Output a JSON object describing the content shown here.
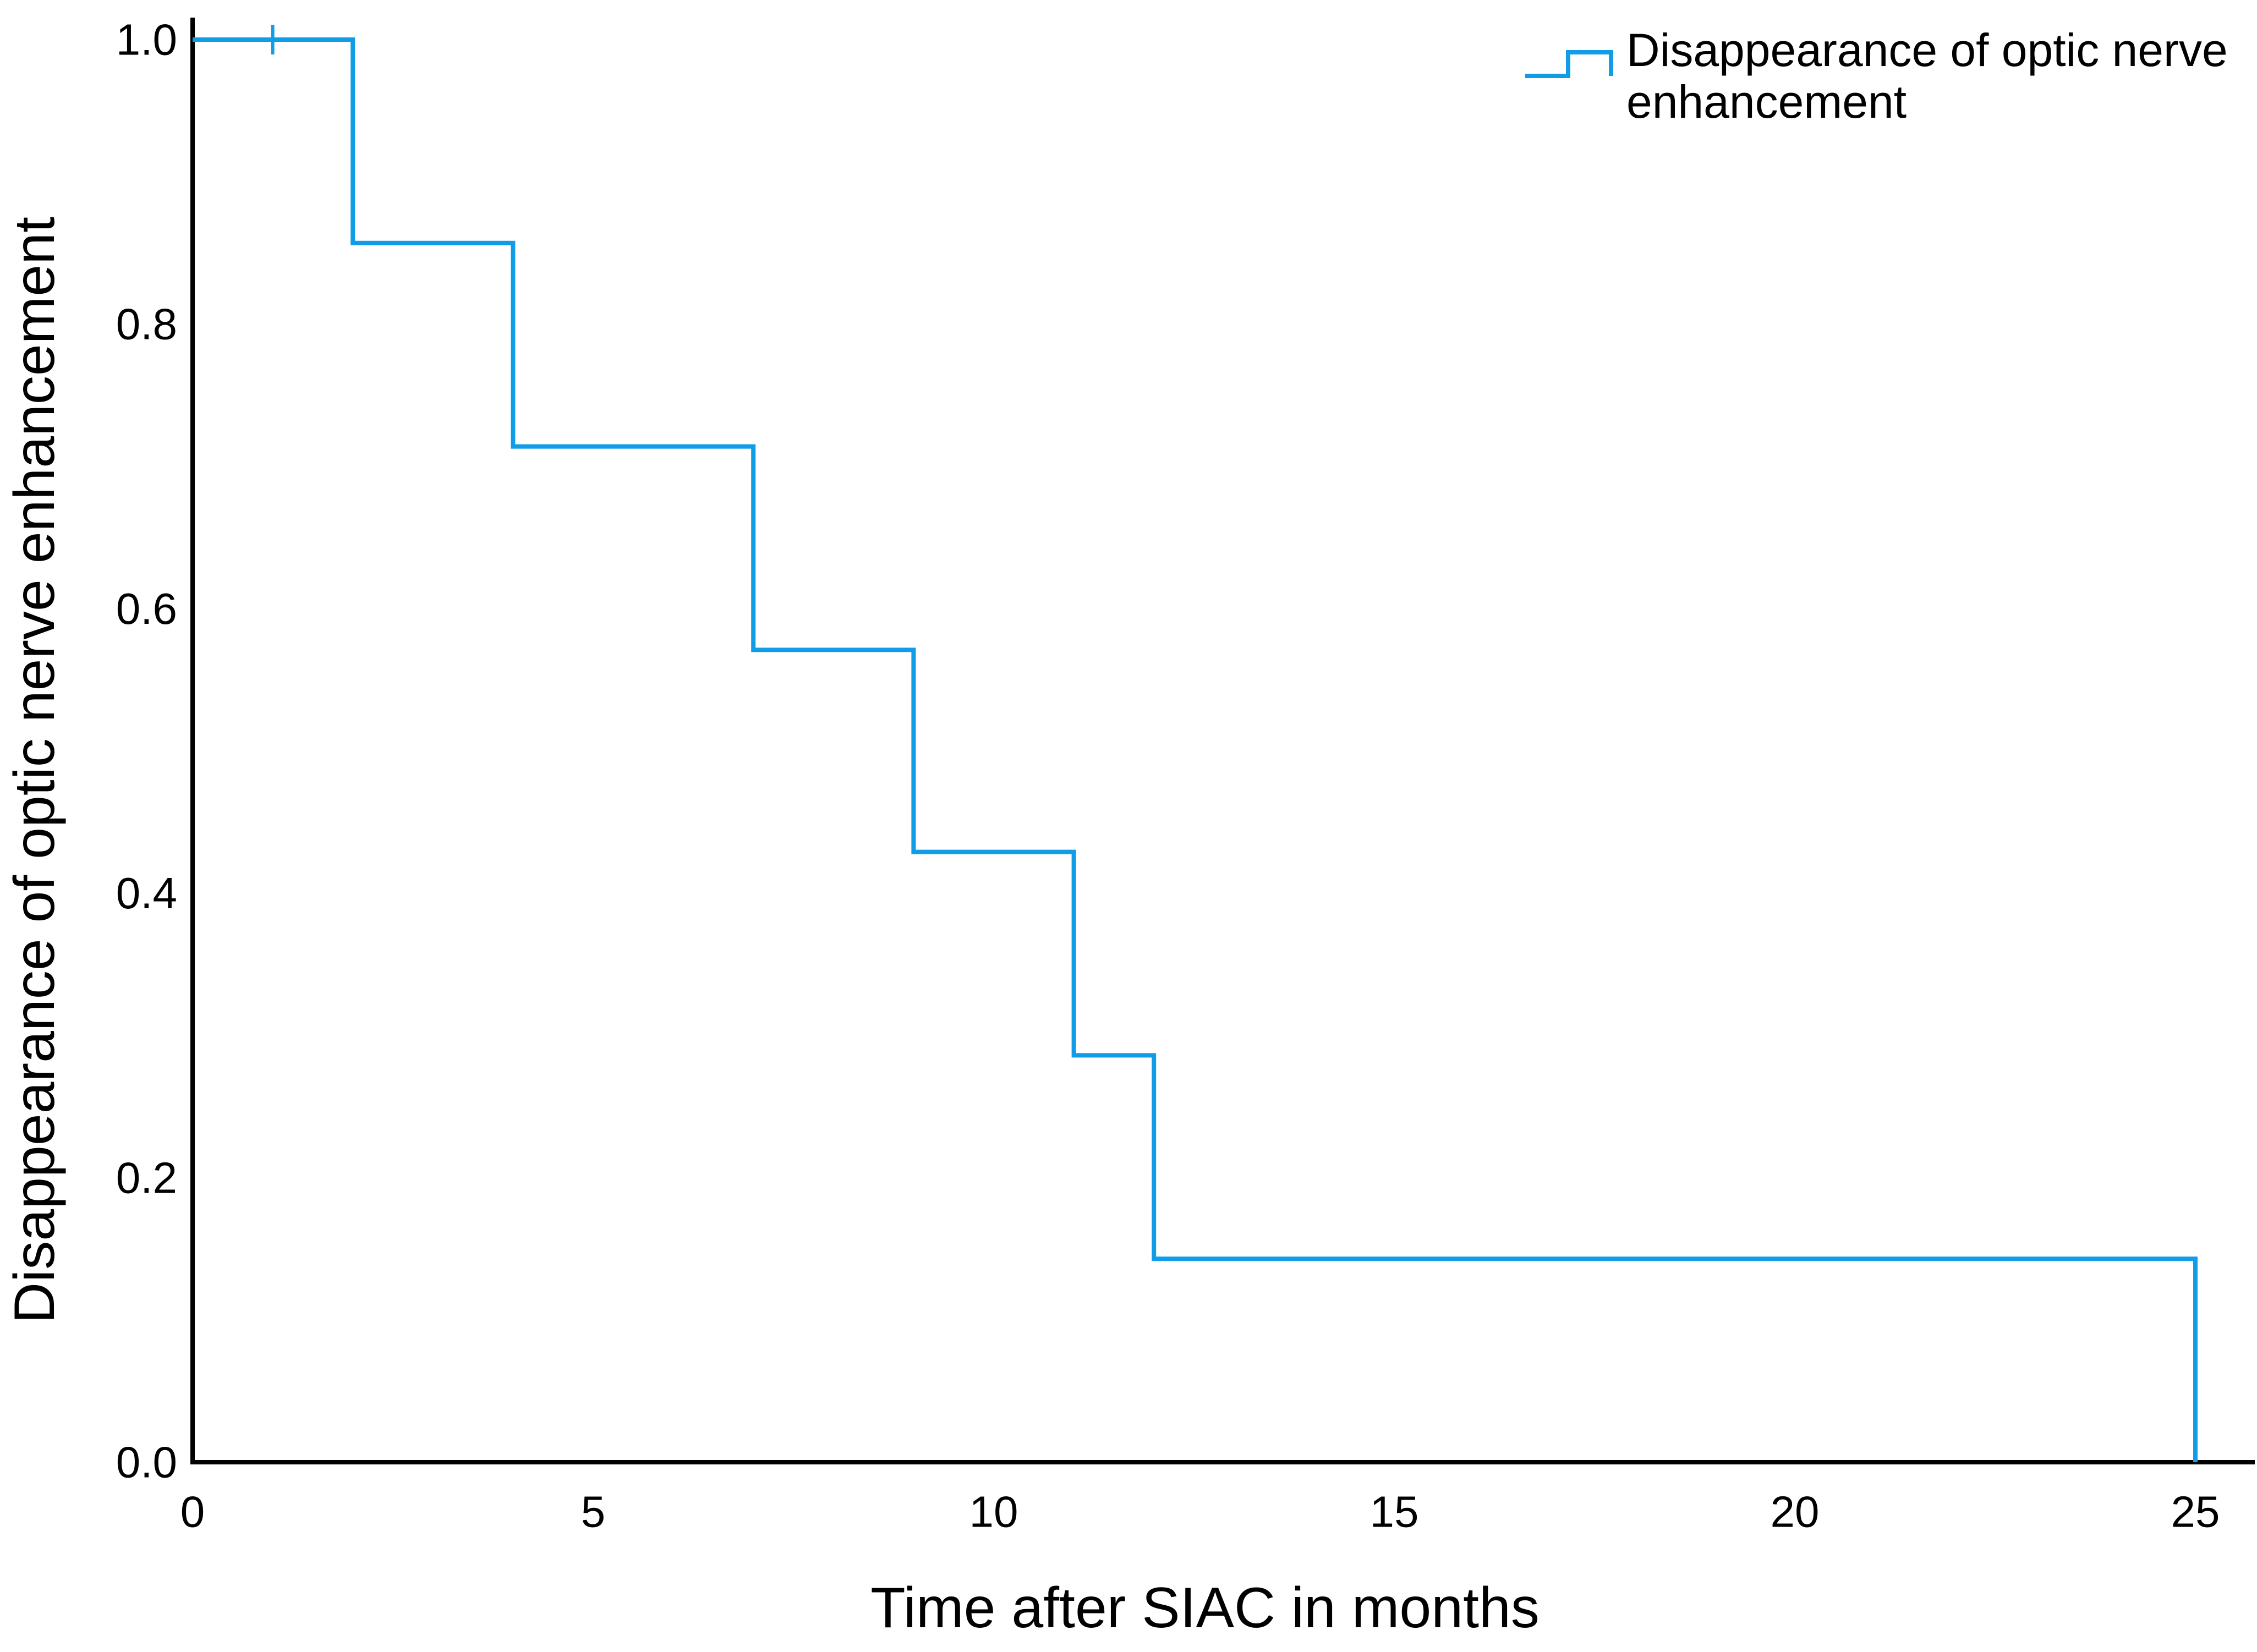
{
  "figure": {
    "background": "#ffffff"
  },
  "axes": {
    "color": "#000000",
    "text_color": "#000000",
    "x_title": "Time after SIAC in months",
    "y_title": "Disappearance of optic nerve enhancement",
    "x_ticks": [
      {
        "value": 0,
        "label": "0"
      },
      {
        "value": 5,
        "label": "5"
      },
      {
        "value": 10,
        "label": "10"
      },
      {
        "value": 15,
        "label": "15"
      },
      {
        "value": 20,
        "label": "20"
      },
      {
        "value": 25,
        "label": "25"
      }
    ],
    "y_ticks": [
      {
        "value": 0.0,
        "label": "0.0"
      },
      {
        "value": 0.2,
        "label": "0.2"
      },
      {
        "value": 0.4,
        "label": "0.4"
      },
      {
        "value": 0.6,
        "label": "0.6"
      },
      {
        "value": 0.8,
        "label": "0.8"
      },
      {
        "value": 1.0,
        "label": "1.0"
      }
    ]
  },
  "legend": {
    "position": "top-right",
    "lines": [
      "Disappearance of optic nerve",
      "enhancement"
    ],
    "symbol": "step-line-icon",
    "color": "#119ce8"
  },
  "chart_data": {
    "type": "line",
    "subtype": "kaplan_meier_step",
    "title": "",
    "xlabel": "Time after SIAC in months",
    "ylabel": "Disappearance of optic nerve enhancement",
    "xlim": [
      0,
      25
    ],
    "ylim": [
      0.0,
      1.0
    ],
    "grid": false,
    "legend_position": "top-right",
    "series": [
      {
        "name": "Disappearance of optic nerve enhancement",
        "color": "#119ce8",
        "step_points": [
          [
            0,
            1.0
          ],
          [
            2,
            1.0
          ],
          [
            2,
            0.857
          ],
          [
            4,
            0.857
          ],
          [
            4,
            0.714
          ],
          [
            7,
            0.714
          ],
          [
            7,
            0.571
          ],
          [
            9,
            0.571
          ],
          [
            9,
            0.429
          ],
          [
            11,
            0.429
          ],
          [
            11,
            0.286
          ],
          [
            12,
            0.286
          ],
          [
            12,
            0.143
          ],
          [
            25,
            0.143
          ],
          [
            25,
            0.0
          ]
        ],
        "censored_points": [
          [
            1,
            1.0
          ]
        ]
      }
    ]
  }
}
